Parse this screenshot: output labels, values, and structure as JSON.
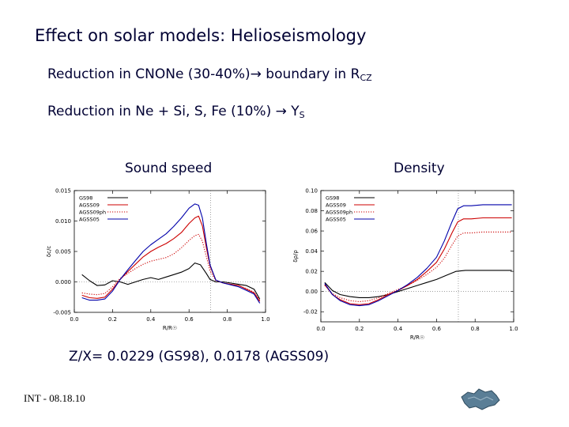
{
  "slide": {
    "title": "Effect on solar models: Helioseismology",
    "bullet1_text": "Reduction in CNONe (30-40%)",
    "bullet1_arrow": "→",
    "bullet1_tail": " boundary in R",
    "bullet1_sub": "CZ",
    "bullet2_text": "Reduction in Ne + Si, S, Fe (10%) ",
    "bullet2_arrow": "→",
    "bullet2_tail": " Y",
    "bullet2_sub": "S",
    "sound_label": "Sound speed",
    "density_label": "Density",
    "zx_text": "Z/X= 0.0229 (GS98), 0.0178 (AGSS09)",
    "footer": "INT - 08.18.10"
  },
  "chart_data": [
    {
      "type": "line",
      "title": "Sound speed",
      "xlabel": "R/R☉",
      "ylabel": "δc/c",
      "xlim": [
        0.0,
        1.0
      ],
      "ylim": [
        -0.005,
        0.015
      ],
      "xticks": [
        0.0,
        0.2,
        0.4,
        0.6,
        0.8,
        1.0
      ],
      "xtick_labels": [
        "0.0",
        "0.2",
        "0.4",
        "0.6",
        "0.8",
        "1.0"
      ],
      "yticks": [
        -0.005,
        0.0,
        0.005,
        0.01,
        0.015
      ],
      "ytick_labels": [
        "-0.005",
        "0.000",
        "0.005",
        "0.010",
        "0.015"
      ],
      "vline_x": 0.713,
      "hline_y": 0.0,
      "legend_position": "top-left",
      "colors": [
        "#000000",
        "#cc0000",
        "#cc0000",
        "#0000aa"
      ],
      "series": [
        {
          "name": "GS98",
          "style": "solid",
          "x": [
            0.04,
            0.08,
            0.12,
            0.16,
            0.2,
            0.24,
            0.28,
            0.32,
            0.36,
            0.4,
            0.44,
            0.48,
            0.52,
            0.56,
            0.6,
            0.63,
            0.66,
            0.69,
            0.71,
            0.74,
            0.78,
            0.82,
            0.86,
            0.9,
            0.94,
            0.97
          ],
          "y": [
            0.0012,
            0.0002,
            -0.0006,
            -0.0005,
            0.0002,
            0.0,
            -0.0004,
            0.0,
            0.0004,
            0.0007,
            0.0004,
            0.0008,
            0.0012,
            0.0016,
            0.0022,
            0.0031,
            0.0028,
            0.0014,
            0.0004,
            0.0,
            0.0,
            -0.0002,
            -0.0004,
            -0.0006,
            -0.0012,
            -0.0028
          ]
        },
        {
          "name": "AGSS09",
          "style": "solid",
          "x": [
            0.04,
            0.08,
            0.12,
            0.16,
            0.2,
            0.24,
            0.28,
            0.32,
            0.36,
            0.4,
            0.44,
            0.48,
            0.52,
            0.56,
            0.6,
            0.63,
            0.65,
            0.67,
            0.69,
            0.71,
            0.74,
            0.78,
            0.82,
            0.86,
            0.9,
            0.94,
            0.97
          ],
          "y": [
            -0.0022,
            -0.0026,
            -0.0027,
            -0.0025,
            -0.0012,
            0.0004,
            0.0017,
            0.0029,
            0.0041,
            0.005,
            0.0057,
            0.0063,
            0.0071,
            0.0081,
            0.0096,
            0.0105,
            0.0108,
            0.0092,
            0.0057,
            0.0026,
            0.0003,
            -0.0002,
            -0.0004,
            -0.0006,
            -0.0012,
            -0.0018,
            -0.0032
          ]
        },
        {
          "name": "AGSS09ph",
          "style": "dotted",
          "x": [
            0.04,
            0.08,
            0.12,
            0.16,
            0.2,
            0.24,
            0.28,
            0.32,
            0.36,
            0.4,
            0.44,
            0.48,
            0.52,
            0.56,
            0.6,
            0.63,
            0.65,
            0.67,
            0.69,
            0.71,
            0.74,
            0.78,
            0.82,
            0.86,
            0.9,
            0.94,
            0.97
          ],
          "y": [
            -0.0018,
            -0.002,
            -0.0021,
            -0.0019,
            -0.0008,
            0.0006,
            0.0014,
            0.0022,
            0.0029,
            0.0034,
            0.0037,
            0.004,
            0.0046,
            0.0056,
            0.0068,
            0.0076,
            0.0078,
            0.0067,
            0.0042,
            0.0018,
            0.0002,
            -0.0002,
            -0.0004,
            -0.0006,
            -0.0011,
            -0.0017,
            -0.003
          ]
        },
        {
          "name": "AGSS05",
          "style": "solid",
          "x": [
            0.04,
            0.08,
            0.12,
            0.16,
            0.2,
            0.24,
            0.28,
            0.32,
            0.36,
            0.4,
            0.44,
            0.48,
            0.52,
            0.56,
            0.6,
            0.63,
            0.65,
            0.67,
            0.69,
            0.71,
            0.74,
            0.78,
            0.82,
            0.86,
            0.9,
            0.94,
            0.97
          ],
          "y": [
            -0.0026,
            -0.003,
            -0.003,
            -0.0028,
            -0.0015,
            0.0004,
            0.002,
            0.0035,
            0.005,
            0.0061,
            0.007,
            0.0079,
            0.0091,
            0.0105,
            0.0121,
            0.0128,
            0.0126,
            0.0105,
            0.0064,
            0.0028,
            0.0003,
            -0.0002,
            -0.0005,
            -0.0008,
            -0.0014,
            -0.002,
            -0.0035
          ]
        }
      ]
    },
    {
      "type": "line",
      "title": "Density",
      "xlabel": "R/R☉",
      "ylabel": "δρ/ρ",
      "xlim": [
        0.0,
        1.0
      ],
      "ylim": [
        -0.03,
        0.1
      ],
      "xticks": [
        0.0,
        0.2,
        0.4,
        0.6,
        0.8,
        1.0
      ],
      "xtick_labels": [
        "0.0",
        "0.2",
        "0.4",
        "0.6",
        "0.8",
        "1.0"
      ],
      "yticks": [
        -0.02,
        0.0,
        0.02,
        0.04,
        0.06,
        0.08,
        0.1
      ],
      "ytick_labels": [
        "-0.02",
        "0.00",
        "0.02",
        "0.04",
        "0.06",
        "0.08",
        "0.10"
      ],
      "vline_x": 0.713,
      "hline_y": 0.0,
      "legend_position": "top-left",
      "colors": [
        "#000000",
        "#cc0000",
        "#cc0000",
        "#0000aa"
      ],
      "series": [
        {
          "name": "GS98",
          "style": "solid",
          "x": [
            0.02,
            0.06,
            0.1,
            0.15,
            0.2,
            0.25,
            0.3,
            0.35,
            0.4,
            0.45,
            0.5,
            0.55,
            0.6,
            0.65,
            0.7,
            0.75,
            0.8,
            0.85,
            0.9,
            0.95,
            0.99
          ],
          "y": [
            0.009,
            0.001,
            -0.003,
            -0.005,
            -0.006,
            -0.006,
            -0.005,
            -0.003,
            0.0,
            0.003,
            0.006,
            0.009,
            0.012,
            0.016,
            0.02,
            0.021,
            0.021,
            0.021,
            0.021,
            0.021,
            0.021
          ]
        },
        {
          "name": "AGSS09",
          "style": "solid",
          "x": [
            0.02,
            0.06,
            0.1,
            0.15,
            0.2,
            0.25,
            0.3,
            0.35,
            0.4,
            0.45,
            0.5,
            0.55,
            0.6,
            0.64,
            0.68,
            0.71,
            0.74,
            0.78,
            0.84,
            0.9,
            0.95,
            0.99
          ],
          "y": [
            0.007,
            -0.003,
            -0.008,
            -0.012,
            -0.013,
            -0.012,
            -0.008,
            -0.003,
            0.001,
            0.006,
            0.012,
            0.02,
            0.029,
            0.042,
            0.058,
            0.069,
            0.072,
            0.072,
            0.073,
            0.073,
            0.073,
            0.073
          ]
        },
        {
          "name": "AGSS09ph",
          "style": "dotted",
          "x": [
            0.02,
            0.06,
            0.1,
            0.15,
            0.2,
            0.25,
            0.3,
            0.35,
            0.4,
            0.45,
            0.5,
            0.55,
            0.6,
            0.64,
            0.68,
            0.71,
            0.74,
            0.78,
            0.84,
            0.9,
            0.95,
            0.99
          ],
          "y": [
            0.006,
            -0.002,
            -0.006,
            -0.009,
            -0.01,
            -0.009,
            -0.006,
            -0.002,
            0.002,
            0.006,
            0.011,
            0.017,
            0.024,
            0.033,
            0.046,
            0.055,
            0.058,
            0.058,
            0.059,
            0.059,
            0.059,
            0.059
          ]
        },
        {
          "name": "AGSS05",
          "style": "solid",
          "x": [
            0.02,
            0.06,
            0.1,
            0.15,
            0.2,
            0.25,
            0.3,
            0.35,
            0.4,
            0.45,
            0.5,
            0.55,
            0.6,
            0.64,
            0.68,
            0.71,
            0.74,
            0.78,
            0.84,
            0.9,
            0.95,
            0.99
          ],
          "y": [
            0.008,
            -0.003,
            -0.009,
            -0.013,
            -0.014,
            -0.013,
            -0.009,
            -0.004,
            0.001,
            0.007,
            0.014,
            0.023,
            0.034,
            0.05,
            0.069,
            0.082,
            0.085,
            0.085,
            0.086,
            0.086,
            0.086,
            0.086
          ]
        }
      ]
    }
  ]
}
